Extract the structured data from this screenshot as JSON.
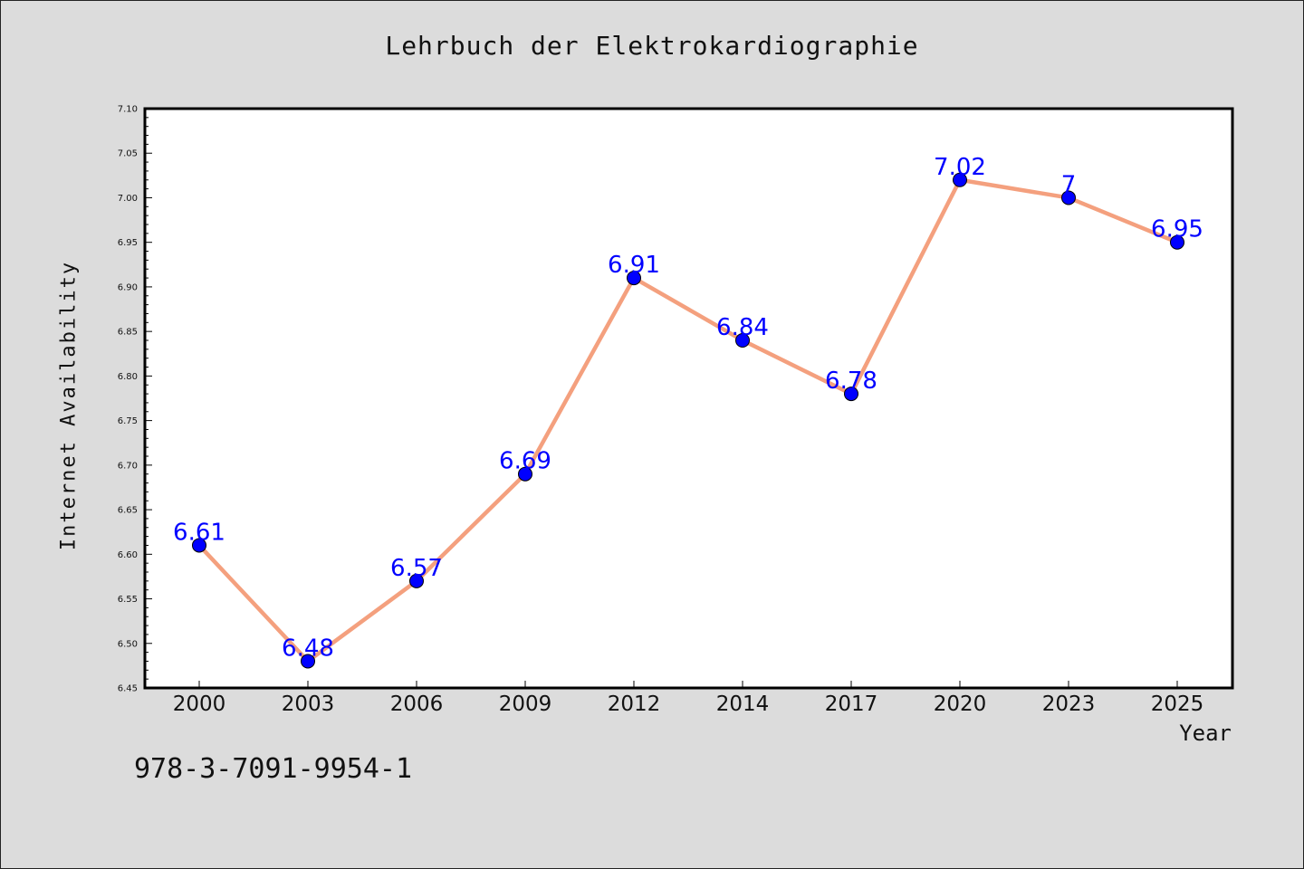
{
  "chart_data": {
    "type": "line",
    "title": "Lehrbuch der Elektrokardiographie",
    "xlabel": "Year",
    "ylabel": "Internet Availability",
    "categories": [
      "2000",
      "2003",
      "2006",
      "2009",
      "2012",
      "2014",
      "2017",
      "2020",
      "2023",
      "2025"
    ],
    "series": [
      {
        "values": [
          6.61,
          6.48,
          6.57,
          6.69,
          6.91,
          6.84,
          6.78,
          7.02,
          7.0,
          6.95
        ],
        "labels": [
          "6.61",
          "6.48",
          "6.57",
          "6.69",
          "6.91",
          "6.84",
          "6.78",
          "7.02",
          "7",
          "6.95"
        ],
        "line_color": "#f4a07e",
        "marker_color": "#0000ff"
      }
    ],
    "ylim": [
      6.45,
      7.1
    ],
    "yticks": [
      "6.45",
      "6.50",
      "6.55",
      "6.60",
      "6.65",
      "6.70",
      "6.75",
      "6.80",
      "6.85",
      "6.90",
      "6.95",
      "7.00",
      "7.05",
      "7.10"
    ],
    "label_color": "#0000ff",
    "grid": false,
    "background": "#dcdcdc",
    "plot_background": "#ffffff"
  },
  "footer": {
    "code": "978-3-7091-9954-1"
  }
}
